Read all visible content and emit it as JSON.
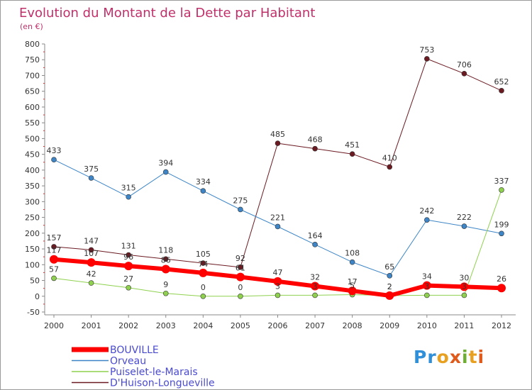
{
  "chart_data": {
    "type": "line",
    "title": "Evolution du Montant de la Dette par Habitant",
    "subtitle": "(en €)",
    "xlabel": "",
    "ylabel": "",
    "x": [
      "2000",
      "2001",
      "2002",
      "2003",
      "2004",
      "2005",
      "2006",
      "2007",
      "2008",
      "2009",
      "2010",
      "2011",
      "2012"
    ],
    "ylim": [
      -50,
      800
    ],
    "yticks": [
      -50,
      0,
      50,
      100,
      150,
      200,
      250,
      300,
      350,
      400,
      450,
      500,
      550,
      600,
      650,
      700,
      750,
      800
    ],
    "grid": false,
    "legend_position": "bottom-left",
    "series": [
      {
        "name": "D'Huison-Longueville",
        "color": "#6b1a22",
        "stroke": 1,
        "labels_below": false,
        "values": [
          157,
          147,
          131,
          118,
          105,
          92,
          485,
          468,
          451,
          410,
          753,
          706,
          652
        ]
      },
      {
        "name": "Orveau",
        "color": "#3d85c6",
        "stroke": 1,
        "labels_below": false,
        "values": [
          433,
          375,
          315,
          394,
          334,
          275,
          221,
          164,
          108,
          65,
          242,
          222,
          199
        ]
      },
      {
        "name": "Puiselet-le-Marais",
        "color": "#8fd14f",
        "stroke": 1,
        "labels_below": false,
        "values": [
          57,
          42,
          27,
          9,
          0,
          0,
          3,
          3,
          5,
          2,
          3,
          3,
          337
        ]
      },
      {
        "name": "BOUVILLE",
        "color": "#ff0000",
        "stroke": 6,
        "labels_below": false,
        "values": [
          117,
          107,
          96,
          86,
          74,
          61,
          47,
          32,
          17,
          2,
          34,
          30,
          26
        ]
      }
    ]
  },
  "logo": {
    "p1": "Pr",
    "p2": "o",
    "p3": "x",
    "p4": "i",
    "p5": "t",
    "p6": "i"
  }
}
